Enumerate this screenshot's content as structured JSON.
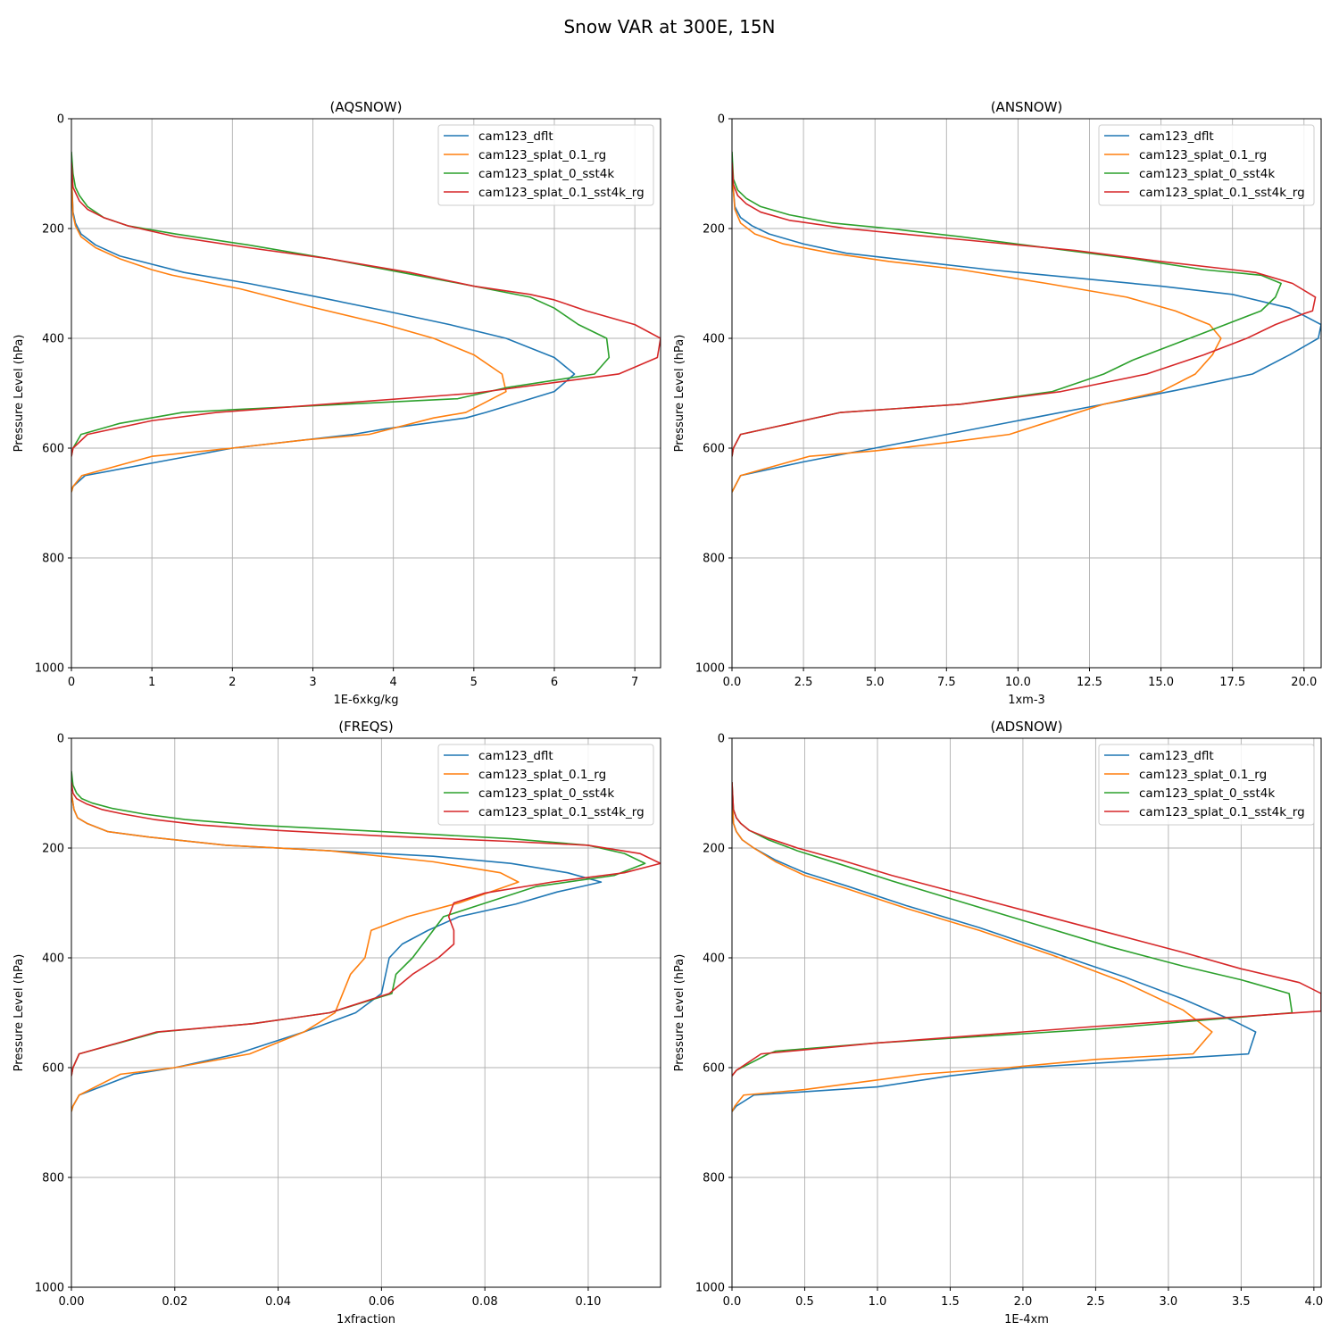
{
  "title": "Snow VAR at 300E, 15N",
  "colors": {
    "cam123_dflt": "#1f77b4",
    "cam123_splat_0.1_rg": "#ff7f0e",
    "cam123_splat_0_sst4k": "#2ca02c",
    "cam123_splat_0.1_sst4k_rg": "#d62728"
  },
  "chart_data": [
    {
      "type": "line",
      "title": "(AQSNOW)",
      "xlabel": "1E-6xkg/kg",
      "ylabel": "Pressure Level (hPa)",
      "xlim": [
        0,
        7.32
      ],
      "ylim": [
        1000,
        0
      ],
      "xticks": [
        0,
        1,
        2,
        3,
        4,
        5,
        6,
        7
      ],
      "xtick_labels": [
        "0",
        "1",
        "2",
        "3",
        "4",
        "5",
        "6",
        "7"
      ],
      "yticks": [
        0,
        200,
        400,
        600,
        800,
        1000
      ],
      "ytick_labels": [
        "0",
        "200",
        "400",
        "600",
        "800",
        "1000"
      ],
      "legend": "top-right",
      "series": [
        {
          "name": "cam123_dflt",
          "x": [
            0,
            0.02,
            0.05,
            0.12,
            0.3,
            0.6,
            1.0,
            1.4,
            2.2,
            2.9,
            3.9,
            4.7,
            5.4,
            6.0,
            6.25,
            6.0,
            5.15,
            4.9,
            3.9,
            3.5,
            2.0,
            1.45,
            0.17,
            0.02,
            0
          ],
          "y": [
            100,
            170,
            190,
            210,
            230,
            250,
            265,
            280,
            300,
            320,
            350,
            375,
            400,
            435,
            465,
            497,
            535,
            545,
            565,
            575,
            600,
            615,
            650,
            670,
            680
          ]
        },
        {
          "name": "cam123_splat_0.1_rg",
          "x": [
            0,
            0.02,
            0.05,
            0.12,
            0.3,
            0.6,
            1.0,
            1.25,
            2.1,
            2.9,
            3.9,
            4.5,
            5.0,
            5.35,
            5.4,
            4.9,
            4.5,
            3.7,
            2.9,
            2.0,
            1.0,
            0.13,
            0.02,
            0
          ],
          "y": [
            100,
            175,
            195,
            215,
            235,
            255,
            275,
            285,
            310,
            340,
            375,
            400,
            430,
            465,
            497,
            535,
            545,
            575,
            585,
            600,
            615,
            650,
            670,
            680
          ]
        },
        {
          "name": "cam123_splat_0_sst4k",
          "x": [
            0,
            0.02,
            0.05,
            0.1,
            0.2,
            0.4,
            0.7,
            1.3,
            2.2,
            3.2,
            4.1,
            5.0,
            5.7,
            6.0,
            6.3,
            6.65,
            6.68,
            6.5,
            5.4,
            4.8,
            2.0,
            1.38,
            0.6,
            0.12,
            0.02,
            0
          ],
          "y": [
            60,
            100,
            125,
            140,
            160,
            180,
            195,
            210,
            230,
            255,
            280,
            305,
            325,
            345,
            375,
            400,
            435,
            465,
            490,
            510,
            530,
            535,
            555,
            575,
            600,
            615
          ]
        },
        {
          "name": "cam123_splat_0.1_sst4k_rg",
          "x": [
            0,
            0.02,
            0.1,
            0.2,
            0.4,
            0.7,
            1.3,
            2.2,
            3.2,
            4.2,
            5.0,
            5.7,
            6.0,
            6.4,
            7.0,
            7.32,
            7.28,
            6.8,
            5.0,
            1.8,
            1.0,
            0.2,
            0.02,
            0
          ],
          "y": [
            80,
            125,
            150,
            165,
            180,
            195,
            215,
            235,
            255,
            280,
            305,
            320,
            330,
            350,
            375,
            400,
            435,
            465,
            500,
            535,
            550,
            575,
            600,
            615
          ]
        }
      ]
    },
    {
      "type": "line",
      "title": "(ANSNOW)",
      "xlabel": "1xm-3",
      "ylabel": "Pressure Level (hPa)",
      "xlim": [
        0,
        20.6
      ],
      "ylim": [
        1000,
        0
      ],
      "xticks": [
        0,
        2.5,
        5.0,
        7.5,
        10.0,
        12.5,
        15.0,
        17.5,
        20.0
      ],
      "xtick_labels": [
        "0.0",
        "2.5",
        "5.0",
        "7.5",
        "10.0",
        "12.5",
        "15.0",
        "17.5",
        "20.0"
      ],
      "yticks": [
        0,
        200,
        400,
        600,
        800,
        1000
      ],
      "ytick_labels": [
        "0",
        "200",
        "400",
        "600",
        "800",
        "1000"
      ],
      "legend": "top-right",
      "series": [
        {
          "name": "cam123_dflt",
          "x": [
            0,
            0.1,
            0.3,
            0.7,
            1.3,
            2.5,
            4.0,
            6.5,
            9.0,
            12.0,
            15.0,
            17.5,
            19.5,
            20.6,
            20.5,
            19.5,
            18.2,
            15.5,
            12.5,
            10.0,
            7.5,
            5.0,
            4.0,
            2.5,
            0.3,
            0.1,
            0
          ],
          "y": [
            100,
            160,
            180,
            195,
            210,
            228,
            245,
            260,
            275,
            290,
            305,
            320,
            345,
            375,
            400,
            430,
            465,
            495,
            525,
            550,
            575,
            600,
            610,
            625,
            650,
            670,
            680
          ]
        },
        {
          "name": "cam123_splat_0.1_rg",
          "x": [
            0,
            0.1,
            0.3,
            0.8,
            1.8,
            3.5,
            5.5,
            8.0,
            11.0,
            13.8,
            15.5,
            16.7,
            17.1,
            16.8,
            16.2,
            15.0,
            13.0,
            11.5,
            9.7,
            7.5,
            5.0,
            2.7,
            0.3,
            0.1,
            0
          ],
          "y": [
            100,
            165,
            190,
            210,
            228,
            245,
            260,
            275,
            300,
            325,
            350,
            375,
            400,
            430,
            465,
            497,
            520,
            545,
            575,
            590,
            605,
            615,
            650,
            670,
            680
          ]
        },
        {
          "name": "cam123_splat_0_sst4k",
          "x": [
            0,
            0.05,
            0.2,
            0.5,
            1.0,
            2.0,
            3.5,
            5.5,
            8.0,
            11.0,
            14.0,
            16.5,
            18.5,
            19.2,
            19.0,
            18.5,
            17.0,
            15.0,
            14.0,
            13.0,
            11.2,
            8.0,
            3.8,
            0.3,
            0.05,
            0
          ],
          "y": [
            60,
            110,
            130,
            145,
            160,
            175,
            190,
            200,
            215,
            235,
            255,
            275,
            285,
            300,
            325,
            350,
            380,
            420,
            440,
            465,
            497,
            520,
            535,
            575,
            600,
            615
          ]
        },
        {
          "name": "cam123_splat_0.1_sst4k_rg",
          "x": [
            0,
            0.05,
            0.2,
            0.5,
            1.0,
            2.0,
            4.0,
            6.0,
            9.0,
            12.0,
            15.0,
            17.5,
            18.3,
            19.6,
            20.4,
            20.3,
            20.0,
            19.0,
            18.0,
            16.5,
            14.5,
            11.5,
            8.0,
            3.8,
            0.3,
            0.05,
            0
          ],
          "y": [
            80,
            120,
            140,
            155,
            170,
            185,
            200,
            210,
            225,
            240,
            260,
            275,
            280,
            300,
            325,
            350,
            355,
            375,
            400,
            430,
            465,
            497,
            520,
            535,
            575,
            600,
            615
          ]
        }
      ]
    },
    {
      "type": "line",
      "title": "(FREQS)",
      "xlabel": "1xfraction",
      "ylabel": "Pressure Level (hPa)",
      "xlim": [
        0,
        0.114
      ],
      "ylim": [
        1000,
        0
      ],
      "xticks": [
        0,
        0.02,
        0.04,
        0.06,
        0.08,
        0.1
      ],
      "xtick_labels": [
        "0.00",
        "0.02",
        "0.04",
        "0.06",
        "0.08",
        "0.10"
      ],
      "yticks": [
        0,
        200,
        400,
        600,
        800,
        1000
      ],
      "ytick_labels": [
        "0",
        "200",
        "400",
        "600",
        "800",
        "1000"
      ],
      "legend": "top-right",
      "series": [
        {
          "name": "cam123_dflt",
          "x": [
            0,
            0.0005,
            0.0012,
            0.003,
            0.007,
            0.015,
            0.03,
            0.05,
            0.07,
            0.085,
            0.096,
            0.1025,
            0.094,
            0.086,
            0.075,
            0.069,
            0.064,
            0.0615,
            0.06,
            0.055,
            0.045,
            0.032,
            0.02,
            0.012,
            0.0015,
            0.0003,
            0
          ],
          "y": [
            100,
            130,
            145,
            155,
            170,
            180,
            195,
            205,
            215,
            228,
            245,
            262,
            280,
            302,
            325,
            350,
            375,
            400,
            465,
            500,
            535,
            575,
            600,
            612,
            650,
            670,
            680
          ]
        },
        {
          "name": "cam123_splat_0.1_rg",
          "x": [
            0,
            0.0005,
            0.0012,
            0.003,
            0.007,
            0.015,
            0.03,
            0.05,
            0.07,
            0.083,
            0.0865,
            0.075,
            0.065,
            0.058,
            0.0568,
            0.054,
            0.0525,
            0.051,
            0.045,
            0.0345,
            0.02,
            0.0095,
            0.0015,
            0.0003,
            0
          ],
          "y": [
            100,
            130,
            145,
            155,
            170,
            180,
            195,
            205,
            225,
            245,
            262,
            300,
            325,
            350,
            400,
            430,
            465,
            500,
            535,
            575,
            600,
            612,
            650,
            670,
            680
          ]
        },
        {
          "name": "cam123_splat_0_sst4k",
          "x": [
            0,
            0.0003,
            0.001,
            0.002,
            0.004,
            0.008,
            0.014,
            0.022,
            0.035,
            0.06,
            0.085,
            0.1,
            0.107,
            0.111,
            0.105,
            0.09,
            0.0795,
            0.072,
            0.068,
            0.066,
            0.0628,
            0.062,
            0.05,
            0.035,
            0.017,
            0.0015,
            0.0003,
            0
          ],
          "y": [
            60,
            85,
            100,
            110,
            118,
            128,
            138,
            148,
            158,
            170,
            183,
            195,
            210,
            228,
            250,
            270,
            302,
            325,
            375,
            400,
            430,
            465,
            500,
            520,
            535,
            575,
            600,
            615
          ]
        },
        {
          "name": "cam123_splat_0.1_sst4k_rg",
          "x": [
            0,
            0.0003,
            0.001,
            0.003,
            0.006,
            0.01,
            0.016,
            0.025,
            0.04,
            0.06,
            0.085,
            0.1,
            0.11,
            0.114,
            0.107,
            0.093,
            0.08,
            0.074,
            0.073,
            0.074,
            0.074,
            0.071,
            0.066,
            0.0615,
            0.05,
            0.035,
            0.0165,
            0.0015,
            0.0003,
            0
          ],
          "y": [
            80,
            100,
            110,
            120,
            130,
            138,
            148,
            158,
            168,
            178,
            188,
            195,
            210,
            228,
            245,
            262,
            282,
            300,
            325,
            350,
            375,
            400,
            430,
            465,
            500,
            520,
            535,
            575,
            600,
            615
          ]
        }
      ]
    },
    {
      "type": "line",
      "title": "(ADSNOW)",
      "xlabel": "1E-4xm",
      "ylabel": "Pressure Level (hPa)",
      "xlim": [
        0,
        4.05
      ],
      "ylim": [
        1000,
        0
      ],
      "xticks": [
        0,
        0.5,
        1.0,
        1.5,
        2.0,
        2.5,
        3.0,
        3.5,
        4.0
      ],
      "xtick_labels": [
        "0.0",
        "0.5",
        "1.0",
        "1.5",
        "2.0",
        "2.5",
        "3.0",
        "3.5",
        "4.0"
      ],
      "yticks": [
        0,
        200,
        400,
        600,
        800,
        1000
      ],
      "ytick_labels": [
        "0",
        "200",
        "400",
        "600",
        "800",
        "1000"
      ],
      "legend": "top-right",
      "series": [
        {
          "name": "cam123_dflt",
          "x": [
            0,
            0.01,
            0.03,
            0.07,
            0.15,
            0.3,
            0.5,
            0.8,
            1.2,
            1.7,
            2.2,
            2.7,
            3.1,
            3.45,
            3.6,
            3.55,
            2.0,
            1.5,
            1.0,
            0.15,
            0.03,
            0
          ],
          "y": [
            100,
            155,
            170,
            185,
            200,
            222,
            245,
            270,
            305,
            345,
            390,
            435,
            475,
            515,
            535,
            575,
            600,
            615,
            635,
            650,
            670,
            680
          ]
        },
        {
          "name": "cam123_splat_0.1_rg",
          "x": [
            0,
            0.01,
            0.03,
            0.07,
            0.15,
            0.3,
            0.5,
            0.8,
            1.2,
            1.7,
            2.2,
            2.7,
            3.1,
            3.3,
            3.17,
            2.5,
            1.9,
            1.3,
            0.5,
            0.08,
            0.02,
            0
          ],
          "y": [
            100,
            155,
            170,
            185,
            200,
            225,
            250,
            275,
            310,
            350,
            395,
            445,
            495,
            535,
            575,
            585,
            600,
            612,
            640,
            650,
            670,
            680
          ]
        },
        {
          "name": "cam123_splat_0_sst4k",
          "x": [
            0,
            0.01,
            0.03,
            0.06,
            0.12,
            0.25,
            0.45,
            0.75,
            1.1,
            1.6,
            2.1,
            2.6,
            3.1,
            3.5,
            3.83,
            3.85,
            2.5,
            1.0,
            0.3,
            0.25,
            0.03,
            0
          ],
          "y": [
            80,
            130,
            145,
            155,
            168,
            185,
            205,
            230,
            260,
            300,
            340,
            380,
            415,
            440,
            465,
            500,
            530,
            555,
            570,
            575,
            605,
            615
          ]
        },
        {
          "name": "cam123_splat_0.1_sst4k_rg",
          "x": [
            0,
            0.01,
            0.03,
            0.06,
            0.12,
            0.25,
            0.45,
            0.75,
            1.1,
            1.6,
            2.1,
            2.6,
            3.1,
            3.5,
            3.9,
            4.05,
            4.05,
            2.5,
            1.0,
            0.2,
            0.03,
            0
          ],
          "y": [
            80,
            130,
            145,
            155,
            168,
            182,
            200,
            222,
            250,
            285,
            320,
            355,
            390,
            420,
            445,
            465,
            497,
            525,
            555,
            575,
            605,
            615
          ]
        }
      ]
    }
  ]
}
